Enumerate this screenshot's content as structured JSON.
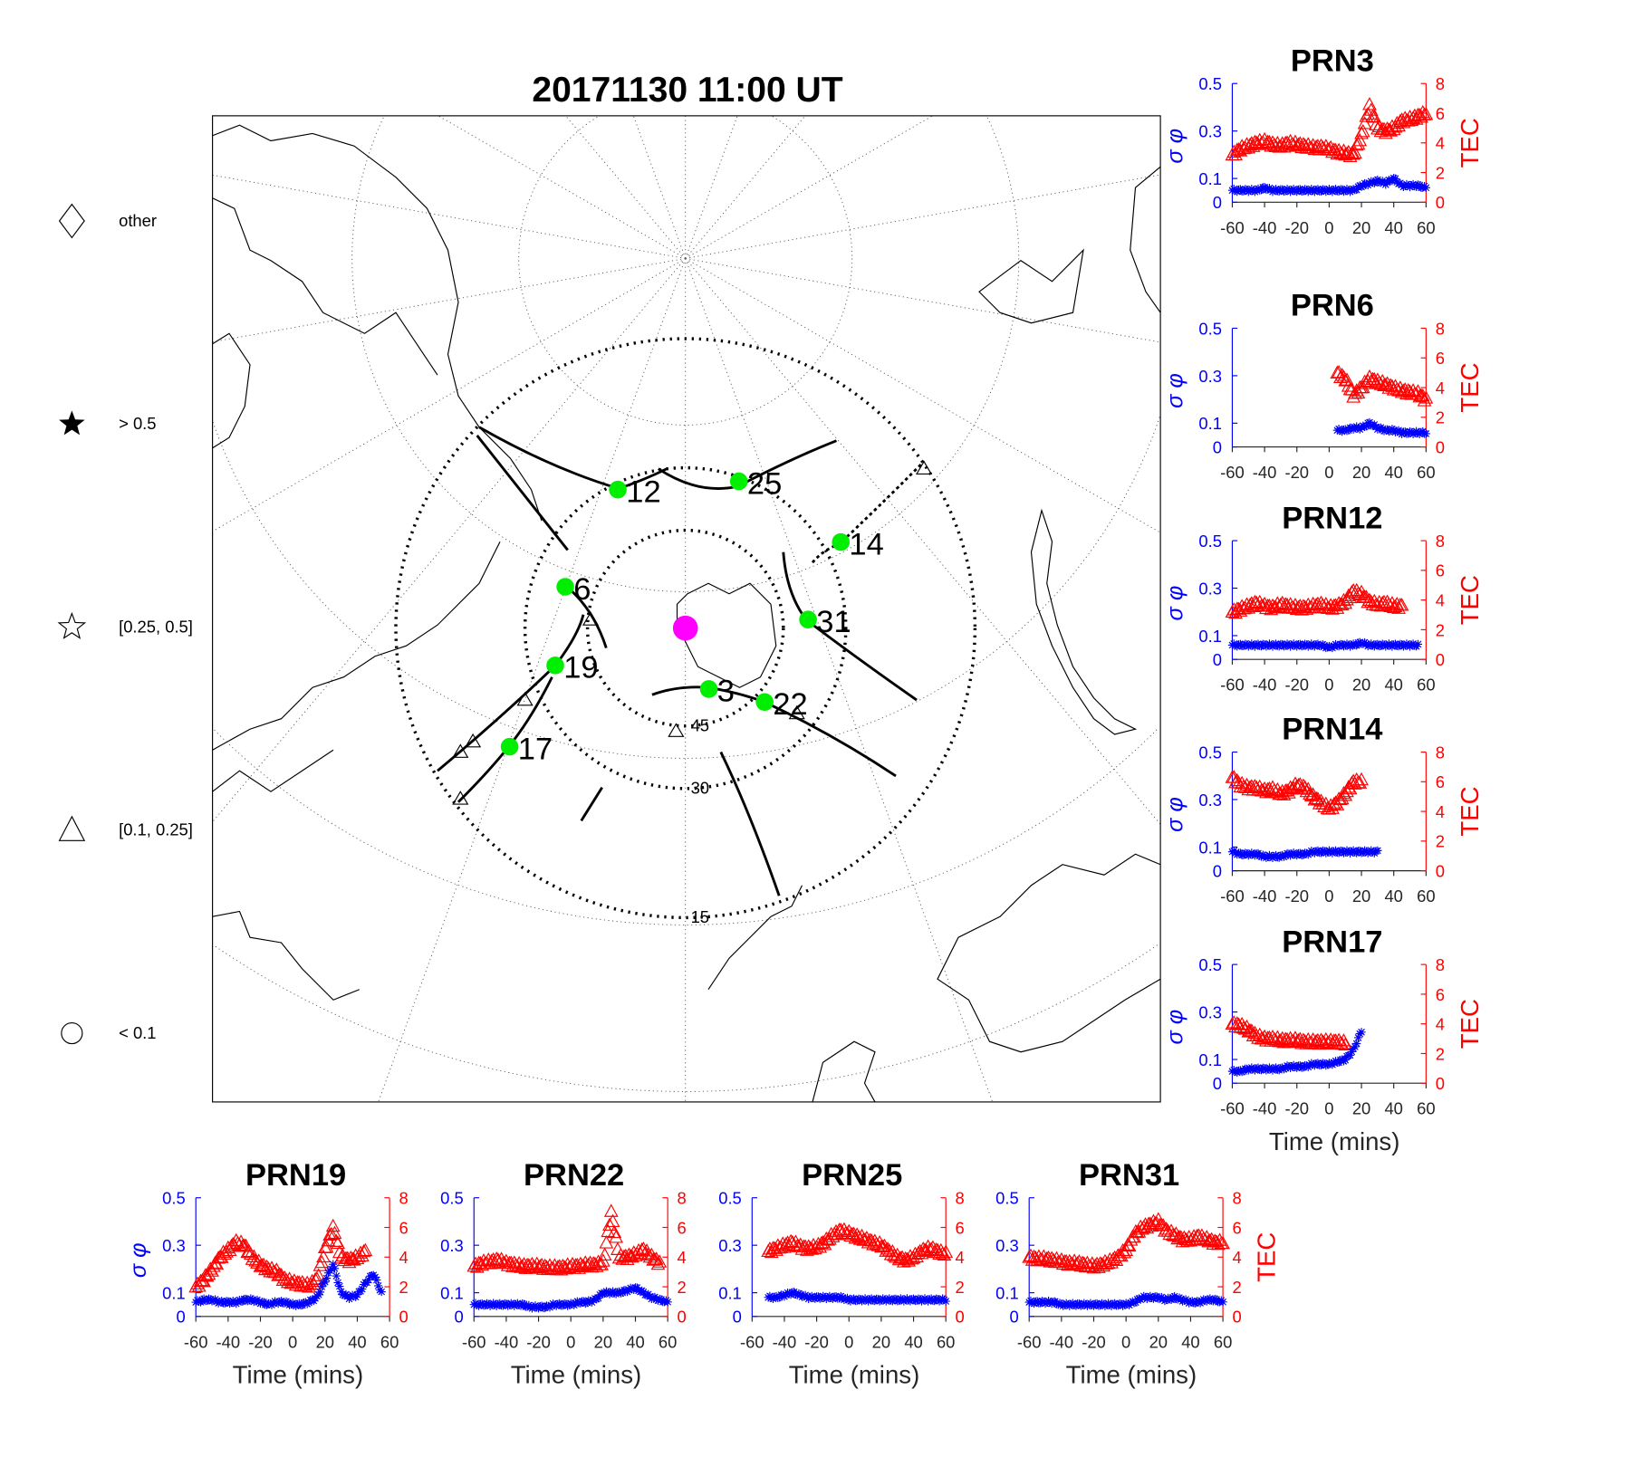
{
  "colors": {
    "sigma": "#0000ff",
    "tec": "#ff0000",
    "satellite": "#00ee00",
    "station": "#ff00ff",
    "axis": "#262626"
  },
  "map": {
    "title": "20171130 11:00 UT",
    "elevation_labels": [
      "45",
      "30",
      "15"
    ],
    "satellites": [
      {
        "prn": "12",
        "azimuth": 334,
        "elevation": 31.5
      },
      {
        "prn": "25",
        "azimuth": 20,
        "elevation": 31
      },
      {
        "prn": "14",
        "azimuth": 61,
        "elevation": 28
      },
      {
        "prn": "6",
        "azimuth": 289,
        "elevation": 38
      },
      {
        "prn": "31",
        "azimuth": 86,
        "elevation": 39
      },
      {
        "prn": "19",
        "azimuth": 254,
        "elevation": 36
      },
      {
        "prn": "3",
        "azimuth": 159,
        "elevation": 60
      },
      {
        "prn": "22",
        "azimuth": 133,
        "elevation": 42.5
      },
      {
        "prn": "17",
        "azimuth": 236,
        "elevation": 24
      }
    ]
  },
  "legend": [
    {
      "symbol": "diamond",
      "label": "other"
    },
    {
      "symbol": "filled-star",
      "label": "> 0.5"
    },
    {
      "symbol": "open-star",
      "label": "[0.25, 0.5]"
    },
    {
      "symbol": "triangle",
      "label": "[0.1, 0.25]"
    },
    {
      "symbol": "circle",
      "label": "< 0.1"
    }
  ],
  "chart_data": {
    "type": "scatter",
    "xlabel": "Time (mins)",
    "ylabel_left": "σ φ",
    "ylabel_right": "TEC",
    "xlim": [
      -60,
      60
    ],
    "ylim_left": [
      0,
      0.5
    ],
    "ylim_right": [
      0,
      8
    ],
    "xticks": [
      "-60",
      "-40",
      "-20",
      "0",
      "20",
      "40",
      "60"
    ],
    "yticks_left": [
      "0",
      "0.1",
      "0.3",
      "0.5"
    ],
    "yticks_right": [
      "0",
      "2",
      "4",
      "6",
      "8"
    ],
    "x": [
      -60,
      -55,
      -50,
      -45,
      -40,
      -35,
      -30,
      -25,
      -20,
      -15,
      -10,
      -5,
      0,
      5,
      10,
      15,
      20,
      25,
      30,
      35,
      40,
      45,
      50,
      55,
      60
    ],
    "panels": [
      {
        "title": "PRN3",
        "sigma": [
          0.05,
          0.05,
          0.05,
          0.05,
          0.06,
          0.05,
          0.05,
          0.05,
          0.05,
          0.05,
          0.05,
          0.05,
          0.05,
          0.05,
          0.05,
          0.05,
          0.07,
          0.08,
          0.09,
          0.08,
          0.1,
          0.07,
          0.07,
          0.07,
          0.06
        ],
        "tec": [
          3.2,
          3.6,
          3.8,
          4.0,
          4.1,
          3.9,
          3.8,
          4.0,
          3.9,
          3.8,
          3.7,
          3.7,
          3.6,
          3.4,
          3.3,
          3.2,
          4.5,
          6.5,
          5.0,
          4.8,
          5.0,
          5.5,
          5.6,
          5.8,
          6.0
        ]
      },
      {
        "title": "PRN6",
        "sigma": [
          null,
          null,
          null,
          null,
          null,
          null,
          null,
          null,
          null,
          null,
          null,
          null,
          null,
          0.07,
          0.07,
          0.08,
          0.08,
          0.1,
          0.08,
          0.07,
          0.07,
          0.06,
          0.06,
          0.06,
          0.06
        ],
        "tec": [
          null,
          null,
          null,
          null,
          null,
          null,
          null,
          null,
          null,
          null,
          null,
          null,
          null,
          5.0,
          4.6,
          3.5,
          4.0,
          4.6,
          4.4,
          4.2,
          4.0,
          3.8,
          3.7,
          3.6,
          3.2
        ]
      },
      {
        "title": "PRN12",
        "sigma": [
          0.06,
          0.06,
          0.06,
          0.06,
          0.06,
          0.06,
          0.06,
          0.06,
          0.06,
          0.06,
          0.06,
          0.06,
          0.05,
          0.06,
          0.06,
          0.06,
          0.07,
          0.06,
          0.06,
          0.06,
          0.06,
          0.06,
          0.06,
          0.06,
          null
        ],
        "tec": [
          3.2,
          3.4,
          3.6,
          3.8,
          3.6,
          3.5,
          3.7,
          3.6,
          3.5,
          3.5,
          3.6,
          3.7,
          3.5,
          3.6,
          3.9,
          4.6,
          4.4,
          3.9,
          3.7,
          3.8,
          3.6,
          3.6,
          null,
          null,
          null
        ]
      },
      {
        "title": "PRN14",
        "sigma": [
          0.08,
          0.07,
          0.07,
          0.07,
          0.06,
          0.06,
          0.06,
          0.07,
          0.07,
          0.07,
          0.08,
          0.08,
          0.08,
          0.08,
          0.08,
          0.08,
          0.08,
          0.08,
          0.08,
          null,
          null,
          null,
          null,
          null,
          null
        ],
        "tec": [
          6.3,
          5.8,
          5.6,
          5.6,
          5.4,
          5.5,
          5.2,
          5.4,
          5.8,
          5.6,
          5.0,
          4.6,
          4.2,
          4.6,
          5.2,
          6.0,
          6.0,
          null,
          null,
          null,
          null,
          null,
          null,
          null,
          null
        ]
      },
      {
        "title": "PRN17",
        "sigma": [
          0.05,
          0.05,
          0.06,
          0.06,
          0.06,
          0.06,
          0.06,
          0.07,
          0.07,
          0.07,
          0.08,
          0.08,
          0.08,
          0.09,
          0.1,
          0.14,
          0.22,
          null,
          null,
          null,
          null,
          null,
          null,
          null,
          null
        ],
        "tec": [
          4.0,
          3.9,
          3.6,
          3.2,
          3.0,
          3.0,
          2.9,
          2.9,
          2.9,
          2.8,
          2.8,
          2.8,
          2.8,
          2.8,
          2.7,
          null,
          null,
          null,
          null,
          null,
          null,
          null,
          null,
          null,
          null
        ]
      },
      {
        "title": "PRN19",
        "sigma": [
          0.06,
          0.07,
          0.07,
          0.06,
          0.06,
          0.06,
          0.07,
          0.07,
          0.06,
          0.05,
          0.06,
          0.06,
          0.05,
          0.05,
          0.06,
          0.08,
          0.15,
          0.22,
          0.1,
          0.08,
          0.09,
          0.14,
          0.18,
          0.1,
          null
        ],
        "tec": [
          2.0,
          2.5,
          3.2,
          4.0,
          4.5,
          5.0,
          4.8,
          4.0,
          3.5,
          3.2,
          3.0,
          2.5,
          2.3,
          2.2,
          2.1,
          2.5,
          4.5,
          6.0,
          4.0,
          3.8,
          4.0,
          4.4,
          null,
          null,
          null
        ]
      },
      {
        "title": "PRN22",
        "sigma": [
          0.05,
          0.05,
          0.05,
          0.05,
          0.05,
          0.05,
          0.05,
          0.04,
          0.04,
          0.04,
          0.05,
          0.05,
          0.05,
          0.06,
          0.06,
          0.07,
          0.1,
          0.1,
          0.1,
          0.11,
          0.12,
          0.1,
          0.08,
          0.07,
          0.06
        ],
        "tec": [
          3.4,
          3.6,
          3.7,
          3.8,
          3.6,
          3.5,
          3.4,
          3.4,
          3.4,
          3.3,
          3.3,
          3.3,
          3.4,
          3.4,
          3.5,
          3.5,
          3.6,
          7.0,
          4.0,
          4.0,
          4.2,
          4.5,
          4.0,
          3.6,
          null
        ]
      },
      {
        "title": "PRN25",
        "sigma": [
          null,
          null,
          0.08,
          0.08,
          0.09,
          0.1,
          0.09,
          0.08,
          0.08,
          0.08,
          0.08,
          0.08,
          0.07,
          0.07,
          0.07,
          0.07,
          0.07,
          0.07,
          0.07,
          0.07,
          0.07,
          0.07,
          0.07,
          0.07,
          0.07
        ],
        "tec": [
          null,
          null,
          4.4,
          4.6,
          4.8,
          5.0,
          4.7,
          4.6,
          4.7,
          5.0,
          5.5,
          5.8,
          5.6,
          5.4,
          5.2,
          5.0,
          4.8,
          4.4,
          4.0,
          3.8,
          4.0,
          4.4,
          4.6,
          4.4,
          4.2
        ]
      },
      {
        "title": "PRN31",
        "sigma": [
          0.06,
          0.06,
          0.06,
          0.06,
          0.05,
          0.05,
          0.05,
          0.05,
          0.05,
          0.05,
          0.05,
          0.05,
          0.05,
          0.06,
          0.08,
          0.08,
          0.08,
          0.07,
          0.08,
          0.07,
          0.06,
          0.06,
          0.07,
          0.07,
          0.06
        ],
        "tec": [
          4.0,
          3.9,
          3.9,
          3.8,
          3.7,
          3.6,
          3.6,
          3.5,
          3.4,
          3.5,
          3.7,
          4.0,
          4.5,
          5.5,
          6.0,
          6.2,
          6.4,
          5.8,
          5.5,
          5.2,
          5.2,
          5.4,
          5.2,
          5.0,
          5.0
        ]
      }
    ]
  }
}
